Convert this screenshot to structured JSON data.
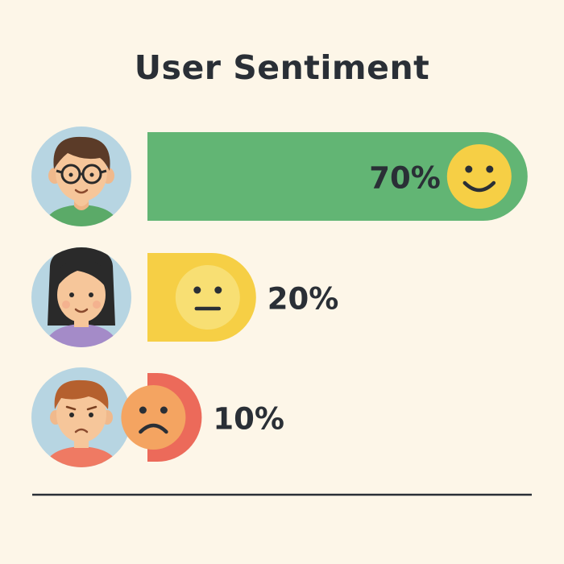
{
  "chart_data": {
    "type": "bar",
    "orientation": "horizontal",
    "title": "User Sentiment",
    "categories": [
      "",
      "",
      ""
    ],
    "values": [
      70,
      20,
      10
    ],
    "value_labels": [
      "70%",
      "20%",
      "10%"
    ],
    "xlim": [
      0,
      100
    ],
    "colors": [
      "#62B574",
      "#F6CF45",
      "#EC6A5A"
    ],
    "faces": [
      "smiling-face-icon",
      "neutral-face-icon",
      "frowning-face-icon"
    ],
    "avatars": [
      "avatar-man-glasses",
      "avatar-woman",
      "avatar-boy"
    ]
  }
}
